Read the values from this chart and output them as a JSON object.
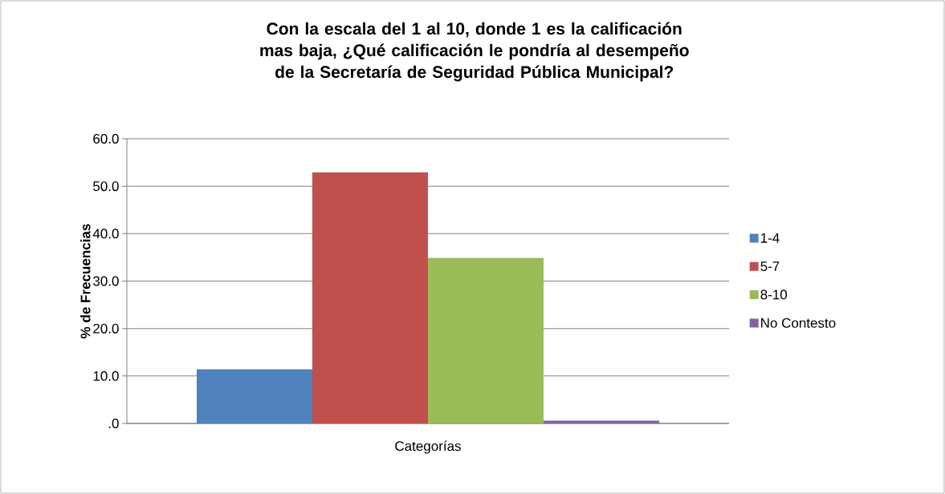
{
  "chart_data": {
    "type": "bar",
    "title": "Con la escala del 1 al 10, donde 1 es la calificación mas baja, ¿Qué calificación le pondría al desempeño de la Secretaría de Seguridad Pública Municipal?",
    "ylabel": "% de Frecuencias",
    "categories": [
      "Categorías"
    ],
    "series": [
      {
        "name": "1-4",
        "color": "#4f81bd",
        "values": [
          11.4
        ]
      },
      {
        "name": "5-7",
        "color": "#c0504d",
        "values": [
          52.9
        ]
      },
      {
        "name": "8-10",
        "color": "#9bbb59",
        "values": [
          34.9
        ]
      },
      {
        "name": "No Contesto",
        "color": "#8064a2",
        "values": [
          0.6
        ]
      }
    ],
    "ylim": [
      0,
      60
    ],
    "yticks": [
      {
        "value": 0,
        "label": ".0"
      },
      {
        "value": 10,
        "label": "10.0"
      },
      {
        "value": 20,
        "label": "20.0"
      },
      {
        "value": 30,
        "label": "30.0"
      },
      {
        "value": 40,
        "label": "40.0"
      },
      {
        "value": 50,
        "label": "50.0"
      },
      {
        "value": 60,
        "label": "60.0"
      }
    ],
    "grid": "y",
    "legend": "right"
  }
}
